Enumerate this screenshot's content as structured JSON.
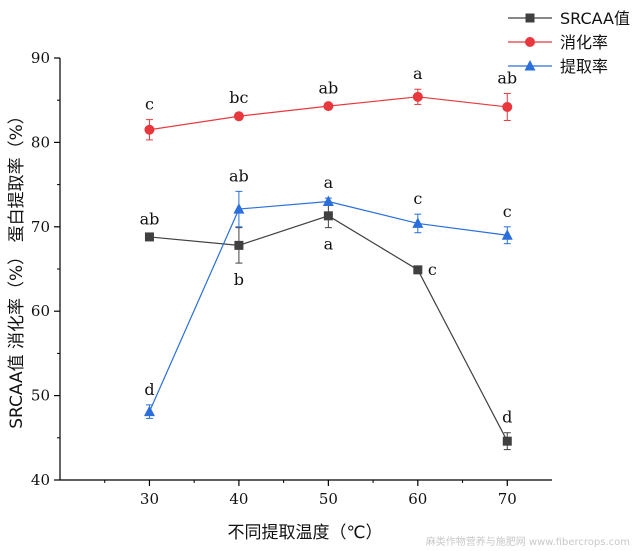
{
  "chart_data": {
    "type": "line",
    "title": "",
    "xlabel": "不同提取温度（℃）",
    "ylabel": "SRCAA值 消化率（%） 蛋白提取率（%）",
    "x": [
      30,
      40,
      50,
      60,
      70
    ],
    "xlim": [
      20,
      75
    ],
    "ylim": [
      40,
      90
    ],
    "xticks": [
      "30",
      "40",
      "50",
      "60",
      "70"
    ],
    "yticks": [
      "40",
      "50",
      "60",
      "70",
      "80",
      "90"
    ],
    "grid": false,
    "legend_position": "top-right",
    "series": [
      {
        "name": "SRCAA值",
        "color": "#404040",
        "marker": "square",
        "values": [
          68.8,
          67.8,
          71.3,
          64.9,
          44.6
        ],
        "errors": [
          0.3,
          2.1,
          1.4,
          0.4,
          1.0
        ],
        "labels": [
          "ab",
          "b",
          "a",
          "c",
          "d"
        ]
      },
      {
        "name": "消化率",
        "color": "#e8383d",
        "marker": "circle",
        "values": [
          81.5,
          83.1,
          84.3,
          85.4,
          84.2
        ],
        "errors": [
          1.2,
          0.4,
          0.3,
          0.9,
          1.6
        ],
        "labels": [
          "c",
          "bc",
          "ab",
          "a",
          "ab"
        ]
      },
      {
        "name": "提取率",
        "color": "#2a6fdb",
        "marker": "triangle",
        "values": [
          48.1,
          72.1,
          73.0,
          70.4,
          69.0
        ],
        "errors": [
          0.8,
          2.1,
          0.4,
          1.1,
          1.0
        ],
        "labels": [
          "d",
          "ab",
          "a",
          "c",
          "c"
        ]
      }
    ]
  },
  "watermark": "麻类作物营养与施肥网  www.fibercrops.com"
}
